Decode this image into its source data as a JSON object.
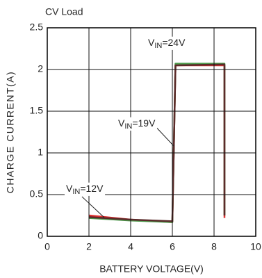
{
  "chart_data": {
    "type": "line",
    "subtitle": "CV Load",
    "x_label": "BATTERY VOLTAGE(V)",
    "y_label": "CHARGE CURRENT(A)",
    "xlim": [
      0,
      10
    ],
    "xticks": [
      0,
      2,
      4,
      6,
      8,
      10
    ],
    "ylim": [
      0,
      2.5
    ],
    "yticks": [
      0,
      0.5,
      1,
      1.5,
      2,
      2.5
    ],
    "grid": true,
    "series": [
      {
        "color": "#e03030",
        "x": [
          2,
          4,
          6,
          6.15,
          8.5,
          8.5
        ],
        "values": [
          0.25,
          0.2,
          0.17,
          2.05,
          2.05,
          0.22
        ]
      },
      {
        "color": "#4a9a4a",
        "x": [
          2,
          4,
          6,
          6.15,
          8.5,
          8.5
        ],
        "values": [
          0.22,
          0.19,
          0.17,
          2.07,
          2.07,
          0.25
        ]
      },
      {
        "color": "#5a2a2a",
        "x": [
          2,
          4,
          6,
          6.15,
          8.5,
          8.5
        ],
        "values": [
          0.23,
          0.2,
          0.18,
          2.05,
          2.06,
          0.25
        ]
      }
    ],
    "annotations": [
      {
        "parts": [
          "V",
          "IN",
          "=12V"
        ]
      },
      {
        "parts": [
          "V",
          "IN",
          "=19V"
        ]
      },
      {
        "parts": [
          "V",
          "IN",
          "=24V"
        ]
      }
    ]
  }
}
